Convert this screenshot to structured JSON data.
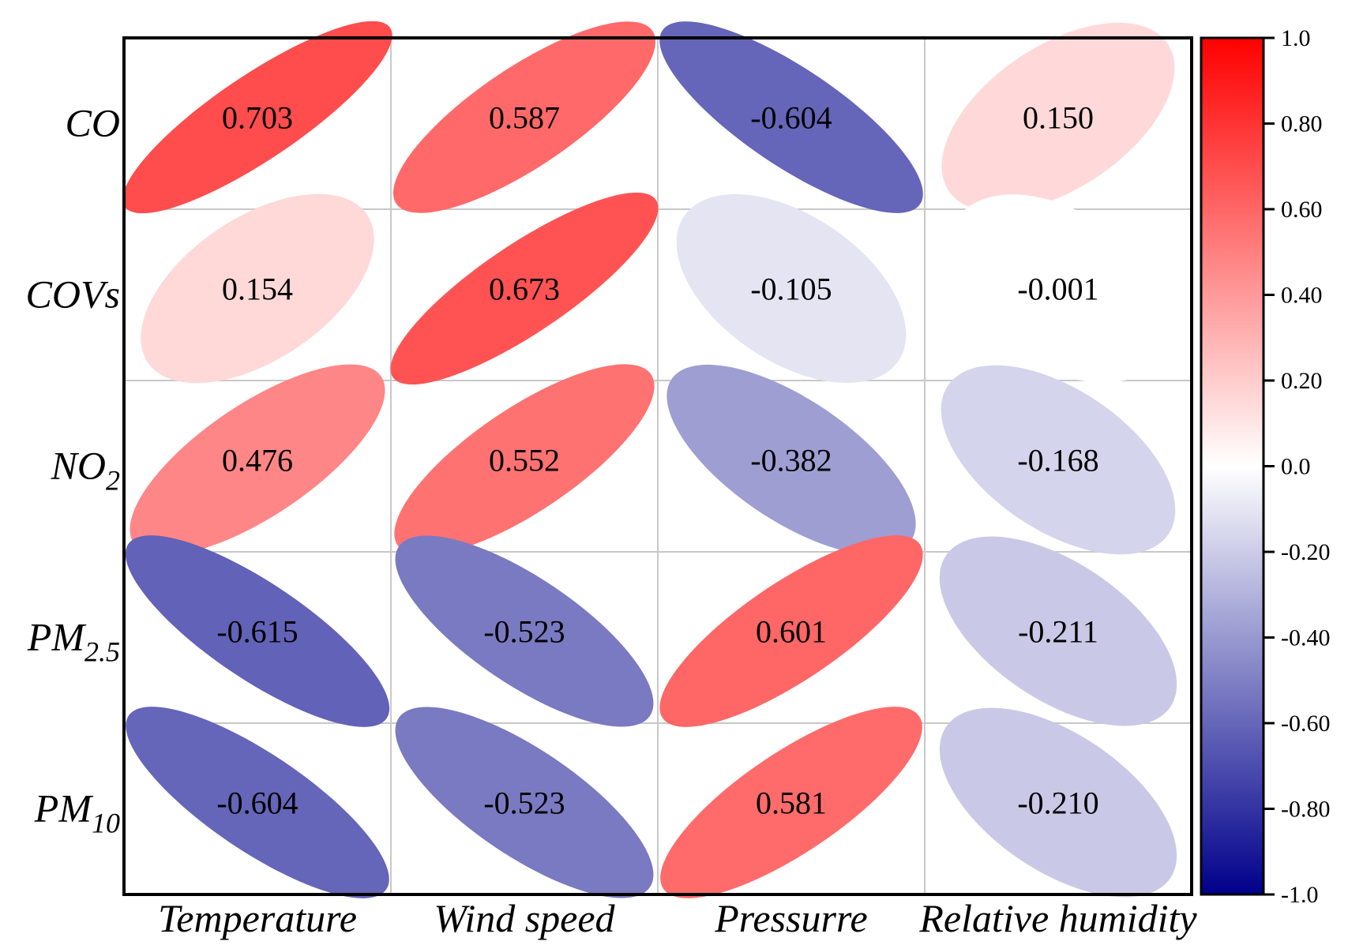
{
  "chart_data": {
    "type": "heatmap",
    "style": "ellipse-correlation-matrix",
    "rows": [
      {
        "name": "CO",
        "sub": ""
      },
      {
        "name": "COVs",
        "sub": ""
      },
      {
        "name": "NO",
        "sub": "2"
      },
      {
        "name": "PM",
        "sub": "2.5"
      },
      {
        "name": "PM",
        "sub": "10"
      }
    ],
    "columns": [
      "Temperature",
      "Wind speed",
      "Pressurre",
      "Relative humidity"
    ],
    "values": [
      [
        0.703,
        0.587,
        -0.604,
        0.15
      ],
      [
        0.154,
        0.673,
        -0.105,
        -0.001
      ],
      [
        0.476,
        0.552,
        -0.382,
        -0.168
      ],
      [
        -0.615,
        -0.523,
        0.601,
        -0.211
      ],
      [
        -0.604,
        -0.523,
        0.581,
        -0.21
      ]
    ],
    "value_labels": [
      [
        "0.703",
        "0.587",
        "-0.604",
        "0.150"
      ],
      [
        "0.154",
        "0.673",
        "-0.105",
        "-0.001"
      ],
      [
        "0.476",
        "0.552",
        "-0.382",
        "-0.168"
      ],
      [
        "-0.615",
        "-0.523",
        "0.601",
        "-0.211"
      ],
      [
        "-0.604",
        "-0.523",
        "0.581",
        "-0.210"
      ]
    ],
    "colorbar": {
      "range": [
        -1.0,
        1.0
      ],
      "ticks": [
        1.0,
        0.8,
        0.6,
        0.4,
        0.2,
        0.0,
        -0.2,
        -0.4,
        -0.6,
        -0.8,
        -1.0
      ],
      "tick_labels": [
        "1.0",
        "0.80",
        "0.60",
        "0.40",
        "0.20",
        "0.0",
        "-0.20",
        "-0.40",
        "-0.60",
        "-0.80",
        "-1.0"
      ],
      "colors": {
        "max": "#ff0000",
        "mid": "#ffffff",
        "min": "#00008b"
      }
    }
  }
}
